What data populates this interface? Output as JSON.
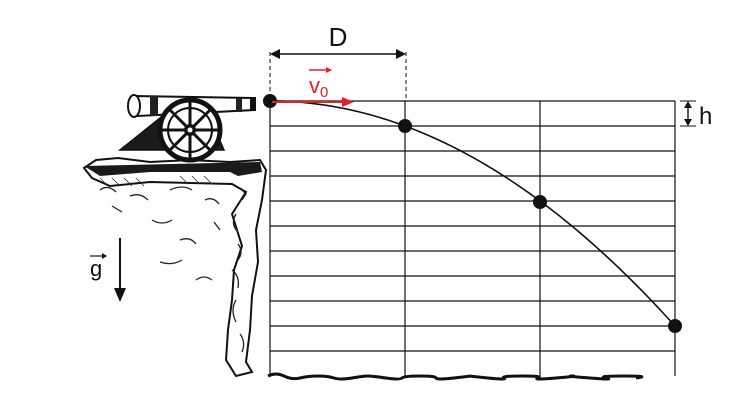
{
  "labels": {
    "spacing": "D",
    "drop": "h",
    "gravity": "g",
    "velocity": "v",
    "velocity_subscript": "0"
  },
  "colors": {
    "velocity": "#e2202a",
    "ink": "#000000",
    "rock": "#111111"
  },
  "icons": {
    "cannon": "cannon-icon",
    "cliff": "cliff-icon"
  }
}
